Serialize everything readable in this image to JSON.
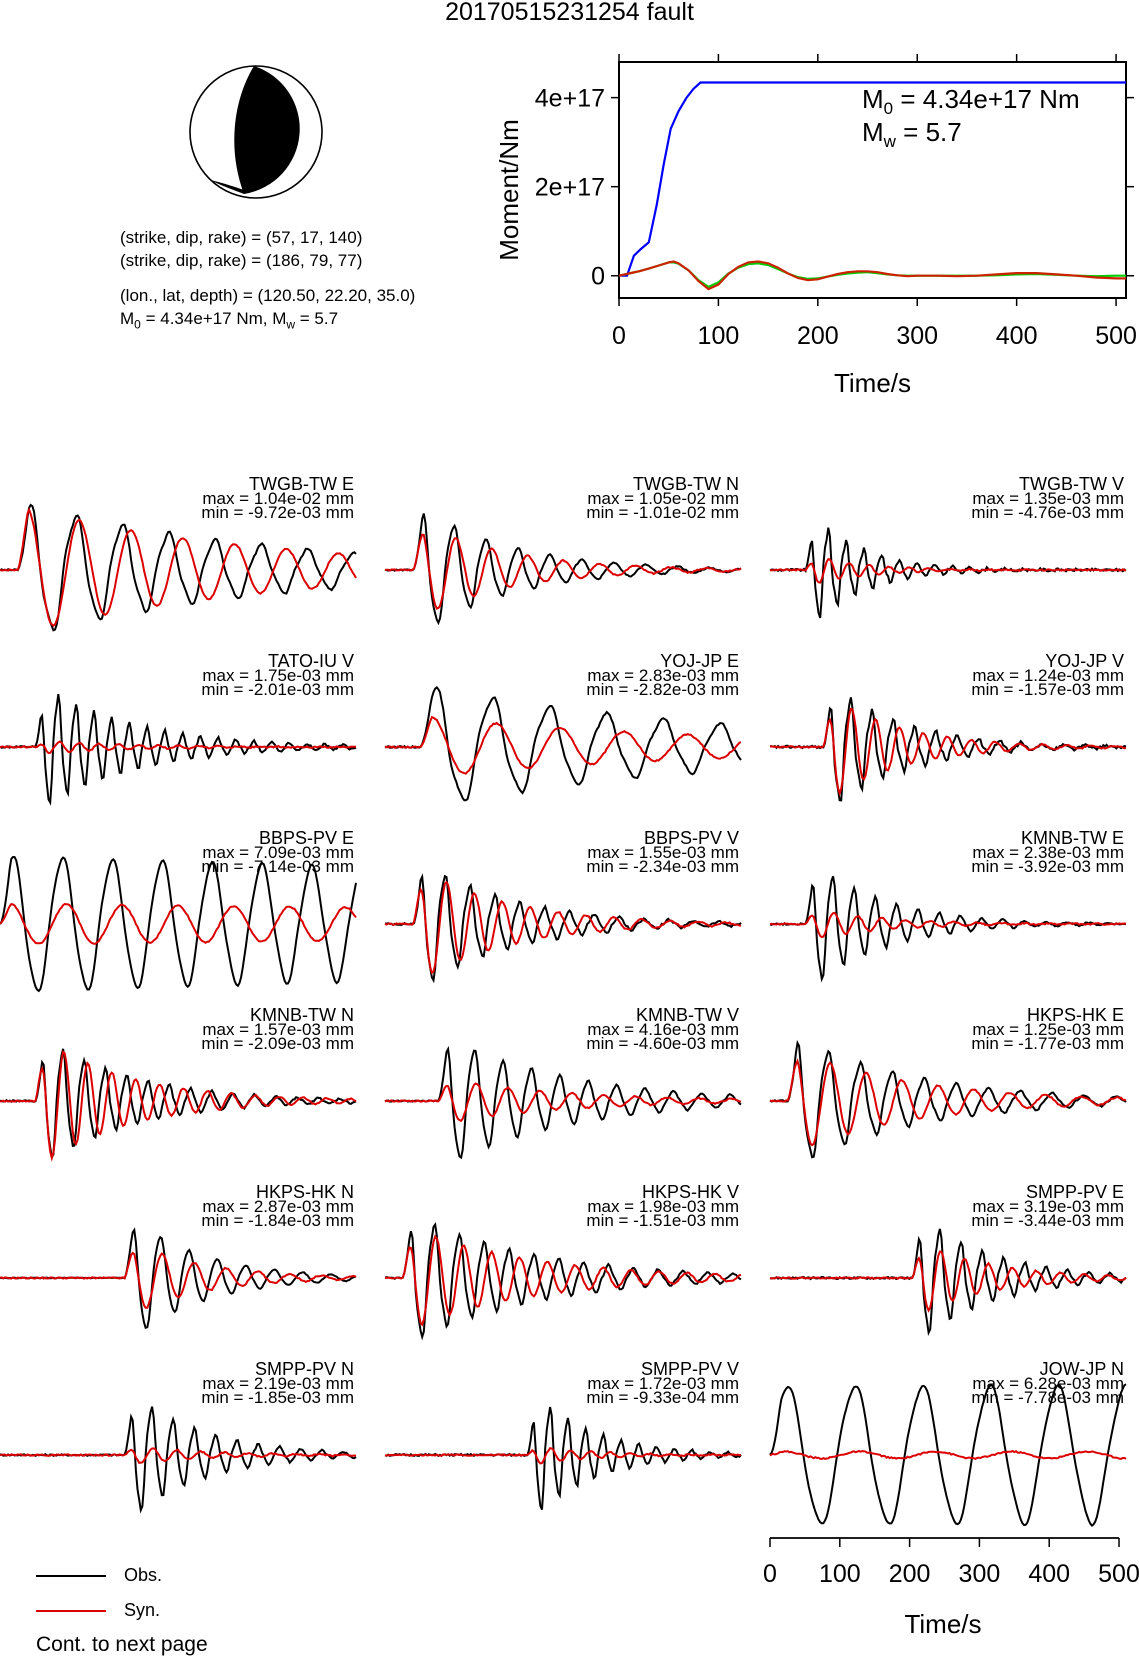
{
  "title": "20170515231254 fault",
  "mechanism": {
    "line1": "(strike, dip, rake) = (57, 17, 140)",
    "line2": "(strike, dip, rake) = (186, 79, 77)",
    "line3": "(lon., lat, depth) = (120.50, 22.20, 35.0)",
    "m0_prefix": "M",
    "m0_sub": "0",
    "m0_value": " = 4.34e+17 Nm, M",
    "mw_sub": "w",
    "mw_value": " = 5.7"
  },
  "moment_panel": {
    "m0_prefix": "M",
    "m0_sub": "0",
    "m0_value": " = 4.34e+17 Nm",
    "mw_prefix": "M",
    "mw_sub": "w",
    "mw_value": " = 5.7"
  },
  "chart_data": [
    {
      "type": "line",
      "ylabel": "Moment/Nm",
      "xlabel": "Time/s",
      "xlim": [
        0,
        510
      ],
      "ylim": [
        -5e+16,
        4.8e+17
      ],
      "x_ticks": [
        "0",
        "100",
        "200",
        "300",
        "400",
        "500"
      ],
      "x_tick_values": [
        0,
        100,
        200,
        300,
        400,
        500
      ],
      "y_ticks": [
        "0",
        "2e+17",
        "4e+17"
      ],
      "y_tick_values": [
        0,
        2e+17,
        4e+17
      ],
      "series": [
        {
          "color": "#0000ff",
          "x": [
            0,
            8,
            15,
            22,
            30,
            38,
            45,
            52,
            60,
            68,
            75,
            82,
            90,
            510
          ],
          "y": [
            0,
            0,
            4.5e+16,
            6e+16,
            7.5e+16,
            1.6e+17,
            2.5e+17,
            3.3e+17,
            3.7e+17,
            4e+17,
            4.2e+17,
            4.34e+17,
            4.34e+17,
            4.34e+17
          ]
        },
        {
          "color": "#00cc00",
          "x": [
            0,
            10,
            20,
            30,
            40,
            50,
            55,
            60,
            70,
            80,
            90,
            100,
            110,
            120,
            130,
            140,
            150,
            160,
            170,
            180,
            190,
            200,
            210,
            220,
            230,
            240,
            250,
            260,
            270,
            280,
            290,
            300,
            320,
            340,
            360,
            380,
            400,
            420,
            440,
            460,
            480,
            500,
            510
          ],
          "y": [
            0,
            5000000000000000.0,
            1e+16,
            1.6e+16,
            2.3e+16,
            3e+16,
            3e+16,
            2.7e+16,
            1.2e+16,
            -1e+16,
            -2.5e+16,
            -1.5e+16,
            5000000000000000.0,
            1.8e+16,
            2.6e+16,
            2.8e+16,
            2.4e+16,
            1.5e+16,
            5000000000000000.0,
            -3000000000000000.0,
            -7000000000000000.0,
            -6000000000000000.0,
            -2000000000000000.0,
            2000000000000000.0,
            5000000000000000.0,
            7000000000000000.0,
            8000000000000000.0,
            6000000000000000.0,
            3000000000000000.0,
            1000000000000000.0,
            0,
            0,
            0,
            0,
            0,
            1000000000000000.0,
            3000000000000000.0,
            4000000000000000.0,
            2000000000000000.0,
            0,
            -1000000000000000.0,
            0,
            0
          ]
        },
        {
          "color": "#cc2200",
          "x": [
            0,
            10,
            20,
            30,
            40,
            50,
            55,
            60,
            70,
            80,
            90,
            100,
            110,
            120,
            130,
            140,
            150,
            160,
            170,
            180,
            190,
            200,
            210,
            220,
            230,
            240,
            250,
            260,
            270,
            280,
            290,
            300,
            320,
            340,
            360,
            380,
            400,
            420,
            440,
            460,
            480,
            500,
            510
          ],
          "y": [
            0,
            5000000000000000.0,
            1e+16,
            1.6e+16,
            2.3e+16,
            3e+16,
            3.2e+16,
            2.8e+16,
            1.2e+16,
            -1.2e+16,
            -3e+16,
            -2e+16,
            4000000000000000.0,
            2e+16,
            3e+16,
            3.2e+16,
            2.8e+16,
            1.8e+16,
            5000000000000000.0,
            -5000000000000000.0,
            -1e+16,
            -8000000000000000.0,
            -2000000000000000.0,
            4000000000000000.0,
            8000000000000000.0,
            1e+16,
            1e+16,
            8000000000000000.0,
            4000000000000000.0,
            1000000000000000.0,
            -1000000000000000.0,
            0,
            0,
            -1000000000000000.0,
            0,
            3000000000000000.0,
            6000000000000000.0,
            6000000000000000.0,
            3000000000000000.0,
            0,
            -4000000000000000.0,
            -6000000000000000.0,
            -6000000000000000.0
          ]
        }
      ]
    },
    {
      "type": "line",
      "xlabel": "Time/s",
      "xlim": [
        0,
        510
      ],
      "x_ticks": [
        "0",
        "100",
        "200",
        "300",
        "400",
        "500"
      ],
      "x_tick_values": [
        0,
        100,
        200,
        300,
        400,
        500
      ],
      "series": [
        {
          "name": "Obs.",
          "color": "#000000"
        },
        {
          "name": "Syn.",
          "color": "#dd0000"
        }
      ],
      "traces": [
        {
          "label": "TWGB-TW E",
          "max": "max = 1.04e-02 mm",
          "min": "min = -9.72e-03 mm",
          "obs_amp": 1.0,
          "syn_amp": 0.95,
          "onset": 0.05,
          "period": 0.13,
          "decay": 1.5,
          "noise": 0.1,
          "seed": 1
        },
        {
          "label": "TWGB-TW N",
          "max": "max = 1.05e-02 mm",
          "min": "min = -1.01e-02 mm",
          "obs_amp": 1.0,
          "syn_amp": 0.75,
          "onset": 0.08,
          "period": 0.09,
          "decay": 4.0,
          "noise": 0.08,
          "seed": 2
        },
        {
          "label": "TWGB-TW V",
          "max": "max = 1.35e-03 mm",
          "min": "min = -4.76e-03 mm",
          "obs_amp": 0.9,
          "syn_amp": 0.25,
          "onset": 0.1,
          "period": 0.05,
          "decay": 7.0,
          "noise": 0.15,
          "seed": 3
        },
        {
          "label": "TATO-IU V",
          "max": "max = 1.75e-03 mm",
          "min": "min = -2.01e-03 mm",
          "obs_amp": 0.95,
          "syn_amp": 0.1,
          "onset": 0.1,
          "period": 0.05,
          "decay": 4.0,
          "noise": 0.12,
          "seed": 4
        },
        {
          "label": "YOJ-JP E",
          "max": "max = 2.83e-03 mm",
          "min": "min = -2.82e-03 mm",
          "obs_amp": 0.9,
          "syn_amp": 0.45,
          "onset": 0.1,
          "period": 0.16,
          "decay": 1.2,
          "noise": 0.1,
          "seed": 5
        },
        {
          "label": "YOJ-JP V",
          "max": "max = 1.24e-03 mm",
          "min": "min = -1.57e-03 mm",
          "obs_amp": 1.0,
          "syn_amp": 0.85,
          "onset": 0.15,
          "period": 0.06,
          "decay": 5.0,
          "noise": 0.15,
          "seed": 6
        },
        {
          "label": "BBPS-PV E",
          "max": "max = 7.09e-03 mm",
          "min": "min = -7.14e-03 mm",
          "obs_amp": 1.0,
          "syn_amp": 0.3,
          "onset": 0.0,
          "period": 0.14,
          "decay": 0.2,
          "noise": 0.05,
          "seed": 7
        },
        {
          "label": "BBPS-PV V",
          "max": "max = 1.55e-03 mm",
          "min": "min = -2.34e-03 mm",
          "obs_amp": 1.0,
          "syn_amp": 0.9,
          "onset": 0.08,
          "period": 0.07,
          "decay": 4.0,
          "noise": 0.12,
          "seed": 8
        },
        {
          "label": "KMNB-TW E",
          "max": "max = 2.38e-03 mm",
          "min": "min = -3.92e-03 mm",
          "obs_amp": 1.0,
          "syn_amp": 0.25,
          "onset": 0.1,
          "period": 0.06,
          "decay": 5.0,
          "noise": 0.1,
          "seed": 9
        },
        {
          "label": "KMNB-TW N",
          "max": "max = 1.57e-03 mm",
          "min": "min = -2.09e-03 mm",
          "obs_amp": 1.0,
          "syn_amp": 1.0,
          "onset": 0.1,
          "period": 0.06,
          "decay": 4.0,
          "noise": 0.1,
          "seed": 10
        },
        {
          "label": "KMNB-TW V",
          "max": "max = 4.16e-03 mm",
          "min": "min = -4.60e-03 mm",
          "obs_amp": 1.0,
          "syn_amp": 0.35,
          "onset": 0.15,
          "period": 0.08,
          "decay": 3.0,
          "noise": 0.08,
          "seed": 11
        },
        {
          "label": "HKPS-HK E",
          "max": "max = 1.25e-03 mm",
          "min": "min = -1.77e-03 mm",
          "obs_amp": 1.0,
          "syn_amp": 0.8,
          "onset": 0.05,
          "period": 0.09,
          "decay": 3.0,
          "noise": 0.1,
          "seed": 12
        },
        {
          "label": "HKPS-HK N",
          "max": "max = 2.87e-03 mm",
          "min": "min = -1.84e-03 mm",
          "obs_amp": 1.0,
          "syn_amp": 0.6,
          "onset": 0.35,
          "period": 0.08,
          "decay": 5.0,
          "noise": 0.05,
          "seed": 13
        },
        {
          "label": "HKPS-HK V",
          "max": "max = 1.98e-03 mm",
          "min": "min = -1.51e-03 mm",
          "obs_amp": 1.0,
          "syn_amp": 0.8,
          "onset": 0.05,
          "period": 0.07,
          "decay": 3.0,
          "noise": 0.1,
          "seed": 14
        },
        {
          "label": "SMPP-PV E",
          "max": "max = 3.19e-03 mm",
          "min": "min = -3.44e-03 mm",
          "obs_amp": 1.0,
          "syn_amp": 0.6,
          "onset": 0.4,
          "period": 0.06,
          "decay": 5.0,
          "noise": 0.12,
          "seed": 15
        },
        {
          "label": "SMPP-PV N",
          "max": "max = 2.19e-03 mm",
          "min": "min = -1.85e-03 mm",
          "obs_amp": 1.0,
          "syn_amp": 0.15,
          "onset": 0.35,
          "period": 0.06,
          "decay": 5.0,
          "noise": 0.1,
          "seed": 16
        },
        {
          "label": "SMPP-PV V",
          "max": "max = 1.72e-03 mm",
          "min": "min = -9.33e-04 mm",
          "obs_amp": 1.0,
          "syn_amp": 0.15,
          "onset": 0.4,
          "period": 0.05,
          "decay": 6.0,
          "noise": 0.12,
          "seed": 17
        },
        {
          "label": "JOW-JP N",
          "max": "max = 6.28e-03 mm",
          "min": "min = -7.78e-03 mm",
          "obs_amp": 1.0,
          "syn_amp": 0.05,
          "onset": 0.0,
          "period": 0.19,
          "decay": 0.0,
          "noise": 0.05,
          "seed": 18
        }
      ]
    }
  ],
  "legend": {
    "obs": "Obs.",
    "syn": "Syn."
  },
  "footer": "Cont. to next page"
}
